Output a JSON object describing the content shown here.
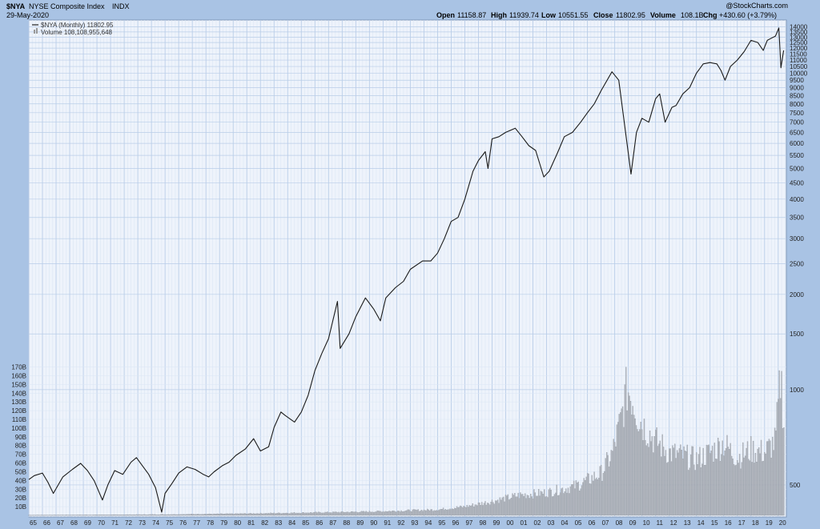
{
  "header": {
    "symbol": "$NYA",
    "name": "NYSE Composite Index",
    "exchange": "INDX",
    "date": "29-May-2020",
    "brand": "@StockCharts.com",
    "open_label": "Open",
    "open": "11158.87",
    "high_label": "High",
    "high": "11939.74",
    "low_label": "Low",
    "low": "10551.55",
    "close_label": "Close",
    "close": "11802.95",
    "volume_label": "Volume",
    "volume": "108.1B",
    "chg_label": "Chg",
    "chg": "+430.60 (+3.79%)"
  },
  "legend": {
    "price": "$NYA (Monthly) 11802.95",
    "volume": "Volume 108,108,955,648"
  },
  "colors": {
    "background": "#a9c3e4",
    "plot": "#eef3fb",
    "grid_major": "#b9cde8",
    "grid_minor": "#dbe6f4",
    "price_line": "#1a1a1a",
    "volume_bar": "#b8bcc4",
    "volume_bar_edge": "#8d939c"
  },
  "chart_data": {
    "type": "line",
    "y_scale": "log",
    "price_ticks": [
      500,
      1000,
      1500,
      2000,
      2500,
      3000,
      3500,
      4000,
      4500,
      5000,
      5500,
      6000,
      6500,
      7000,
      7500,
      8000,
      8500,
      9000,
      9500,
      10000,
      10500,
      11000,
      11500,
      12000,
      12500,
      13000,
      13500,
      14000
    ],
    "price_range": [
      410,
      14300
    ],
    "volume_ticks": [
      "10B",
      "20B",
      "30B",
      "40B",
      "50B",
      "60B",
      "70B",
      "80B",
      "90B",
      "100B",
      "110B",
      "120B",
      "130B",
      "140B",
      "150B",
      "160B",
      "170B"
    ],
    "volume_tick_values": [
      10,
      20,
      30,
      40,
      50,
      60,
      70,
      80,
      90,
      100,
      110,
      120,
      130,
      140,
      150,
      160,
      170
    ],
    "volume_range": [
      0,
      176
    ],
    "x_labels": [
      "65",
      "66",
      "67",
      "68",
      "69",
      "70",
      "71",
      "72",
      "73",
      "74",
      "75",
      "76",
      "77",
      "78",
      "79",
      "80",
      "81",
      "82",
      "83",
      "84",
      "85",
      "86",
      "87",
      "88",
      "89",
      "90",
      "91",
      "92",
      "93",
      "94",
      "95",
      "96",
      "97",
      "98",
      "99",
      "00",
      "01",
      "02",
      "03",
      "04",
      "05",
      "06",
      "07",
      "08",
      "09",
      "10",
      "11",
      "12",
      "13",
      "14",
      "15",
      "16",
      "17",
      "18",
      "19",
      "20"
    ],
    "x_range": [
      1965.0,
      2020.6
    ],
    "price_series": {
      "name": "$NYA (Monthly)",
      "x": [
        1965.0,
        1965.4,
        1966.0,
        1966.4,
        1966.8,
        1967.5,
        1968.2,
        1968.8,
        1969.3,
        1969.8,
        1970.4,
        1970.8,
        1971.3,
        1971.9,
        1972.5,
        1972.9,
        1973.4,
        1973.8,
        1974.3,
        1974.75,
        1975.0,
        1975.5,
        1976.0,
        1976.6,
        1977.2,
        1977.8,
        1978.2,
        1978.6,
        1979.2,
        1979.7,
        1980.2,
        1980.9,
        1981.5,
        1982.0,
        1982.6,
        1983.0,
        1983.5,
        1983.8,
        1984.5,
        1985.0,
        1985.5,
        1986.0,
        1986.5,
        1987.0,
        1987.65,
        1987.85,
        1988.5,
        1989.0,
        1989.7,
        1990.3,
        1990.8,
        1991.2,
        1991.9,
        1992.5,
        1993.0,
        1993.9,
        1994.5,
        1995.0,
        1995.5,
        1996.0,
        1996.5,
        1997.0,
        1997.6,
        1998.0,
        1998.5,
        1998.7,
        1999.0,
        1999.5,
        2000.0,
        2000.7,
        2001.2,
        2001.7,
        2002.2,
        2002.8,
        2003.2,
        2003.8,
        2004.3,
        2004.9,
        2005.5,
        2006.0,
        2006.5,
        2007.0,
        2007.8,
        2008.3,
        2008.8,
        2009.2,
        2009.6,
        2010.0,
        2010.5,
        2011.0,
        2011.3,
        2011.7,
        2012.2,
        2012.5,
        2013.0,
        2013.5,
        2014.0,
        2014.5,
        2015.0,
        2015.5,
        2015.8,
        2016.1,
        2016.5,
        2017.0,
        2017.5,
        2018.0,
        2018.5,
        2018.9,
        2019.2,
        2019.5,
        2019.8,
        2020.05,
        2020.2,
        2020.4
      ],
      "y": [
        520,
        535,
        545,
        510,
        470,
        530,
        560,
        585,
        555,
        515,
        448,
        500,
        555,
        540,
        590,
        610,
        570,
        540,
        490,
        410,
        470,
        505,
        545,
        570,
        560,
        540,
        530,
        550,
        575,
        590,
        620,
        650,
        700,
        640,
        660,
        760,
        850,
        830,
        790,
        850,
        960,
        1150,
        1300,
        1450,
        1900,
        1350,
        1500,
        1700,
        1950,
        1800,
        1650,
        1950,
        2100,
        2200,
        2400,
        2550,
        2550,
        2700,
        3000,
        3400,
        3500,
        4000,
        4900,
        5300,
        5650,
        5000,
        6200,
        6300,
        6500,
        6700,
        6300,
        5900,
        5700,
        4700,
        4900,
        5600,
        6300,
        6500,
        7000,
        7500,
        8000,
        8800,
        10100,
        9500,
        6500,
        4800,
        6500,
        7200,
        7000,
        8300,
        8600,
        7000,
        7800,
        7900,
        8600,
        9000,
        10000,
        10700,
        10800,
        10700,
        10200,
        9500,
        10500,
        11000,
        11700,
        12700,
        12500,
        11800,
        12700,
        12900,
        13100,
        13900,
        10400,
        11800
      ]
    },
    "volume_series": {
      "name": "Volume",
      "unit": "B",
      "x": [
        1965,
        1970,
        1975,
        1980,
        1985,
        1990,
        1995,
        1997,
        1999,
        2001,
        2003,
        2005,
        2006,
        2007,
        2007.8,
        2008.4,
        2008.9,
        2009.3,
        2009.8,
        2010.5,
        2011,
        2012,
        2013,
        2014,
        2015,
        2016,
        2017,
        2018,
        2019,
        2019.8,
        2020.2,
        2020.4
      ],
      "y": [
        0.4,
        0.6,
        1.0,
        1.8,
        3.0,
        4.2,
        6.5,
        10,
        16,
        23,
        26,
        33,
        40,
        48,
        70,
        105,
        145,
        135,
        110,
        95,
        85,
        72,
        68,
        64,
        72,
        82,
        66,
        75,
        72,
        85,
        162,
        108
      ]
    }
  }
}
